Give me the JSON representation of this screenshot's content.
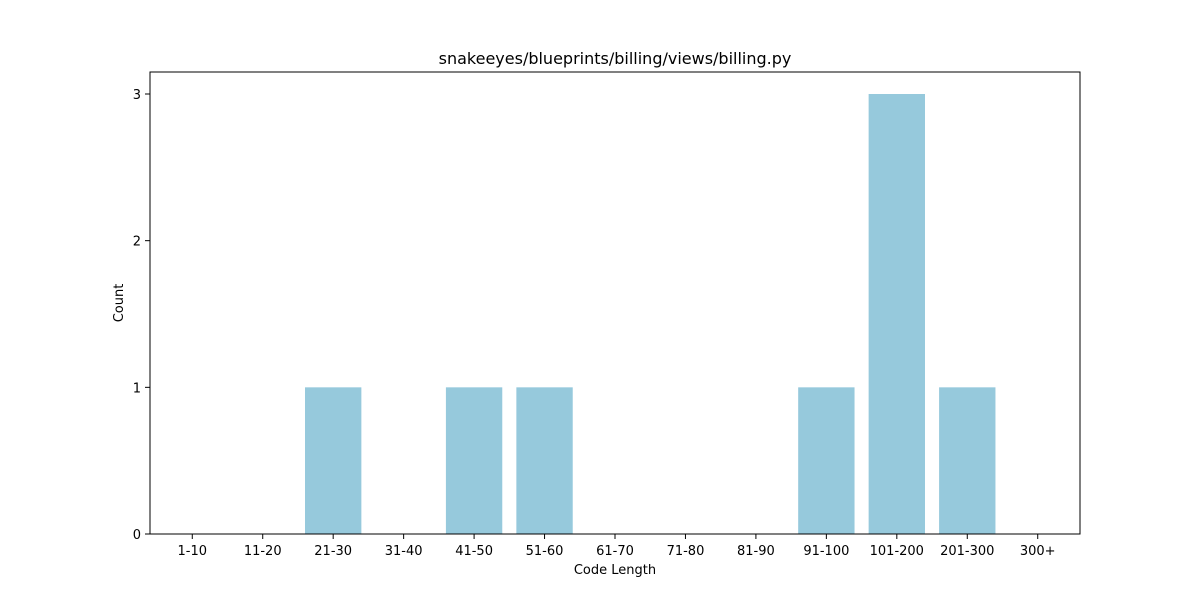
{
  "chart_data": {
    "type": "bar",
    "title": "snakeeyes/blueprints/billing/views/billing.py",
    "xlabel": "Code Length",
    "ylabel": "Count",
    "categories": [
      "1-10",
      "11-20",
      "21-30",
      "31-40",
      "41-50",
      "51-60",
      "61-70",
      "71-80",
      "81-90",
      "91-100",
      "101-200",
      "201-300",
      "300+"
    ],
    "values": [
      0,
      0,
      1,
      0,
      1,
      1,
      0,
      0,
      0,
      1,
      3,
      1,
      0
    ],
    "ylim": [
      0,
      3.15
    ],
    "yticks": [
      0,
      1,
      2,
      3
    ],
    "grid": false,
    "bar_color": "#96c9dc"
  }
}
